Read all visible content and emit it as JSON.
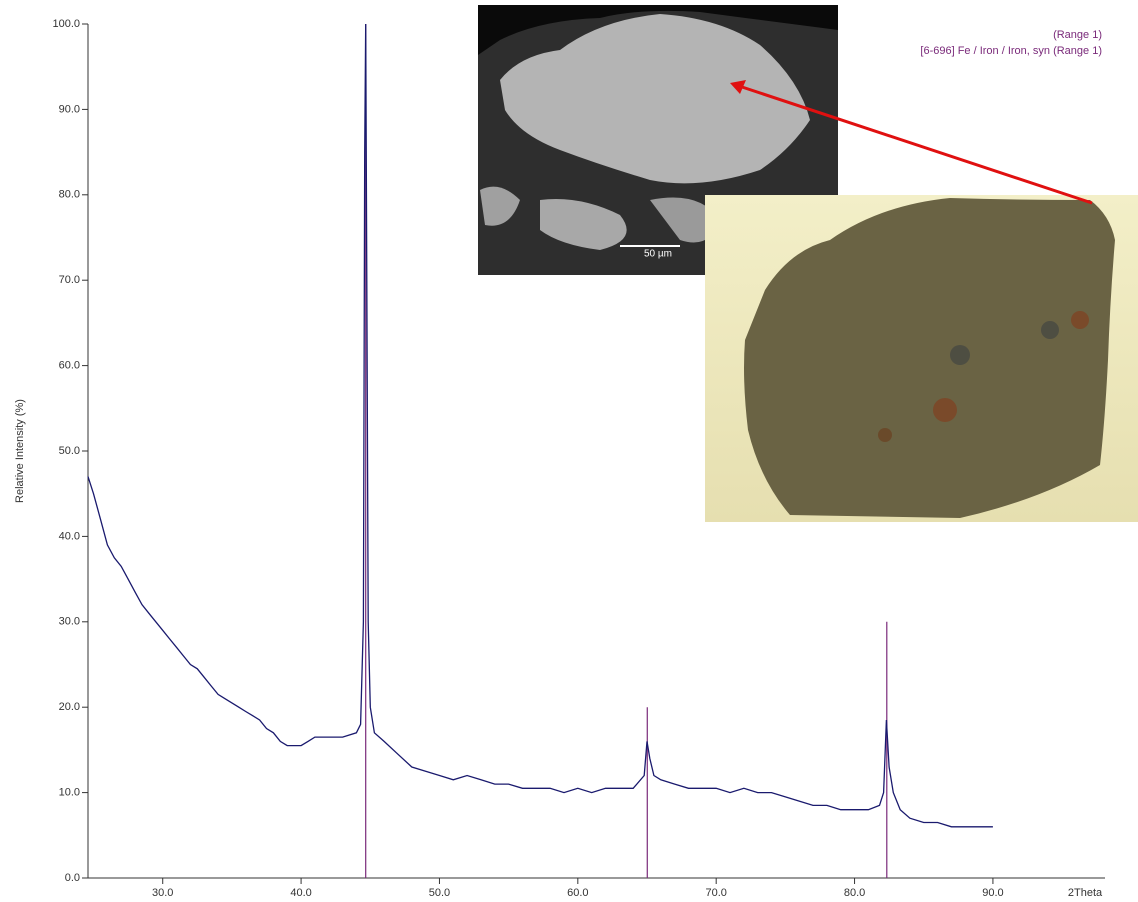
{
  "chart_data": {
    "type": "line",
    "y_label": "Relative Intensity (%)",
    "x_label": "2Theta",
    "xlim": [
      24.6,
      98.1
    ],
    "ylim": [
      0,
      100
    ],
    "xticks": [
      {
        "value": 30,
        "label": "30.0"
      },
      {
        "value": 40,
        "label": "40.0"
      },
      {
        "value": 50,
        "label": "50.0"
      },
      {
        "value": 60,
        "label": "60.0"
      },
      {
        "value": 70,
        "label": "70.0"
      },
      {
        "value": 80,
        "label": "80.0"
      },
      {
        "value": 90,
        "label": "90.0"
      }
    ],
    "yticks": [
      {
        "value": 0,
        "label": "0.0"
      },
      {
        "value": 10,
        "label": "10.0"
      },
      {
        "value": 20,
        "label": "20.0"
      },
      {
        "value": 30,
        "label": "30.0"
      },
      {
        "value": 40,
        "label": "40.0"
      },
      {
        "value": 50,
        "label": "50.0"
      },
      {
        "value": 60,
        "label": "60.0"
      },
      {
        "value": 70,
        "label": "70.0"
      },
      {
        "value": 80,
        "label": "80.0"
      },
      {
        "value": 90,
        "label": "90.0"
      },
      {
        "value": 100,
        "label": "100.0"
      }
    ],
    "x": [
      24.6,
      25,
      25.5,
      26,
      26.5,
      27,
      27.5,
      28,
      28.5,
      29,
      29.5,
      30,
      30.5,
      31,
      31.5,
      32,
      32.5,
      33,
      33.5,
      34,
      34.5,
      35,
      35.5,
      36,
      36.5,
      37,
      37.5,
      38,
      38.5,
      39,
      39.5,
      40,
      40.5,
      41,
      41.5,
      42,
      43,
      44,
      44.3,
      44.5,
      44.6,
      44.67,
      44.75,
      44.85,
      45,
      45.3,
      46,
      47,
      48,
      49,
      50,
      51,
      52,
      53,
      54,
      55,
      56,
      57,
      58,
      59,
      60,
      61,
      62,
      63,
      64,
      64.8,
      65,
      65.2,
      65.5,
      66,
      67,
      68,
      69,
      70,
      71,
      72,
      73,
      74,
      75,
      76,
      77,
      78,
      79,
      80,
      81,
      81.8,
      82.1,
      82.3,
      82.5,
      82.8,
      83.3,
      84,
      85,
      86,
      87,
      88,
      89,
      90
    ],
    "series": [
      {
        "name": "(Range 1)",
        "color": "#1a1a6e",
        "values": [
          47,
          45,
          42,
          39,
          37.5,
          36.5,
          35,
          33.5,
          32,
          31,
          30,
          29,
          28,
          27,
          26,
          25,
          24.5,
          23.5,
          22.5,
          21.5,
          21,
          20.5,
          20,
          19.5,
          19,
          18.5,
          17.5,
          17,
          16,
          15.5,
          15.5,
          15.5,
          16,
          16.5,
          16.5,
          16.5,
          16.5,
          17,
          18,
          30,
          85,
          100,
          70,
          30,
          20,
          17,
          16,
          14.5,
          13,
          12.5,
          12,
          11.5,
          12,
          11.5,
          11,
          11,
          10.5,
          10.5,
          10.5,
          10,
          10.5,
          10,
          10.5,
          10.5,
          10.5,
          12,
          16,
          14,
          12,
          11.5,
          11,
          10.5,
          10.5,
          10.5,
          10,
          10.5,
          10,
          10,
          9.5,
          9,
          8.5,
          8.5,
          8,
          8,
          8,
          8.5,
          10,
          18.5,
          13,
          10,
          8,
          7,
          6.5,
          6.5,
          6,
          6,
          6,
          6
        ]
      }
    ],
    "reference": {
      "name": "[6-696] Fe / Iron / Iron, syn (Range 1)",
      "color": "#7a2a7a",
      "positions": [
        44.67,
        65.02,
        82.33
      ],
      "values": [
        100,
        20,
        30
      ]
    }
  },
  "sem_scale_label": "50 µm"
}
